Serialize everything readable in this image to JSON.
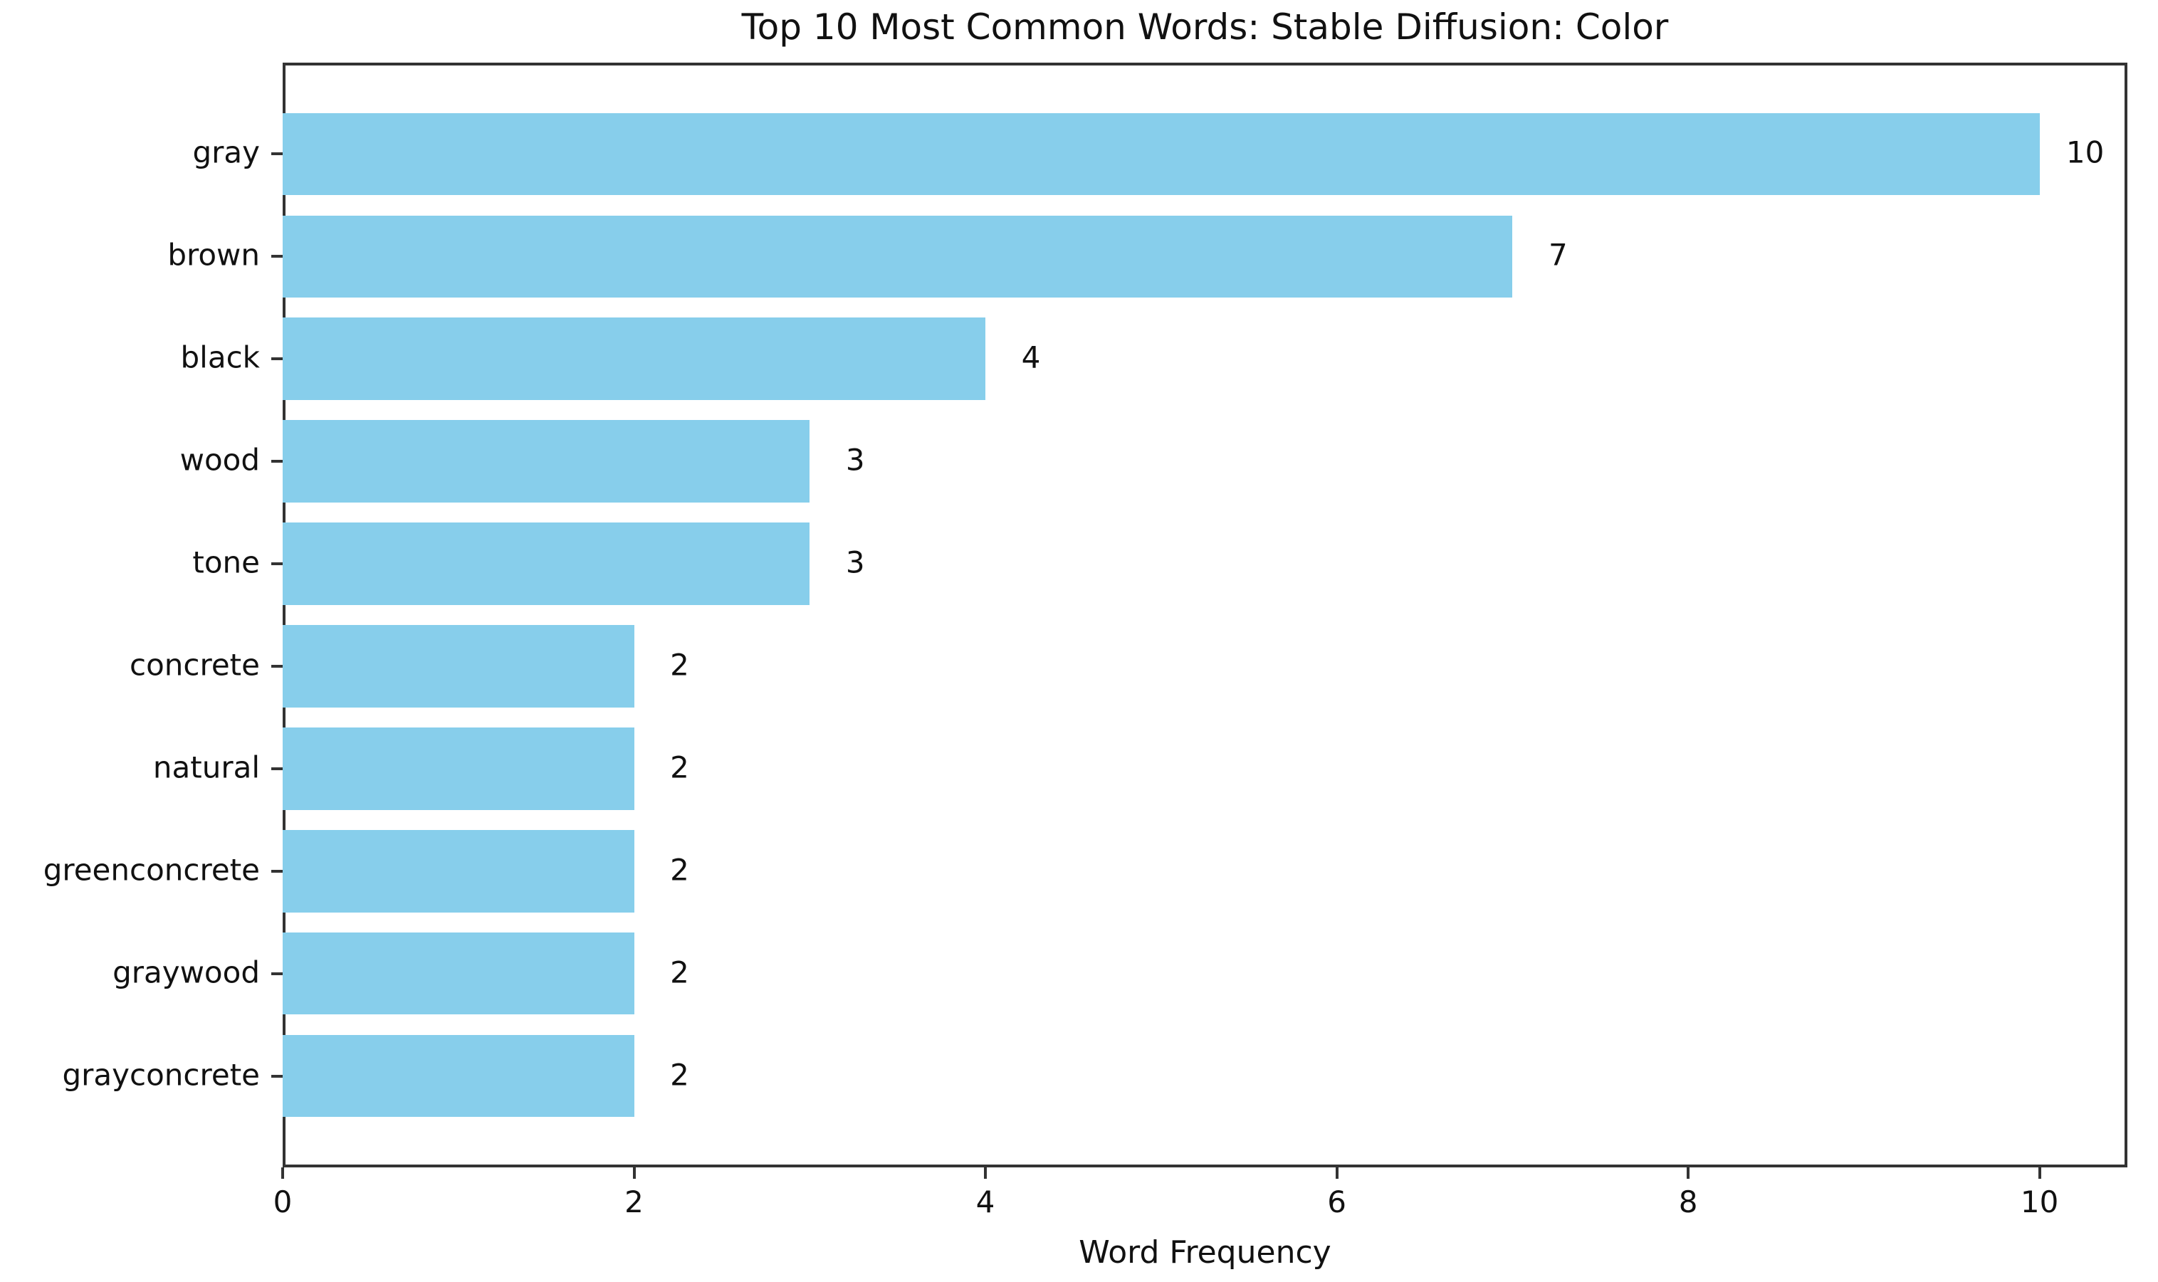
{
  "chart_data": {
    "type": "bar",
    "orientation": "horizontal",
    "title": "Top 10 Most Common Words: Stable Diffusion: Color",
    "xlabel": "Word Frequency",
    "categories": [
      "gray",
      "brown",
      "black",
      "wood",
      "tone",
      "concrete",
      "natural",
      "greenconcrete",
      "graywood",
      "grayconcrete"
    ],
    "values": [
      10,
      7,
      4,
      3,
      3,
      2,
      2,
      2,
      2,
      2
    ],
    "bar_value_labels": [
      "10",
      "7",
      "4",
      "3",
      "3",
      "2",
      "2",
      "2",
      "2",
      "2"
    ],
    "x_ticks": [
      0,
      2,
      4,
      6,
      8,
      10
    ],
    "x_tick_labels": [
      "0",
      "2",
      "4",
      "6",
      "8",
      "10"
    ],
    "xlim": [
      0,
      10.5
    ],
    "category_axis_margin_units": 0.39,
    "bar_thickness_ratio": 0.8,
    "grid": false,
    "legend_position": "none",
    "bar_color": "#87CEEB",
    "spine_color": "#333333",
    "text_color": "#111111",
    "background_color": "#ffffff"
  }
}
